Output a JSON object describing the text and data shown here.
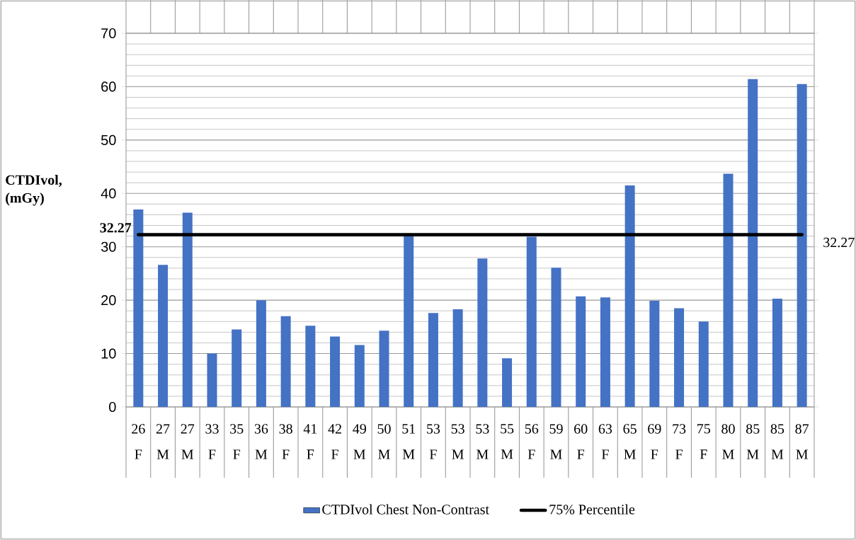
{
  "chart_data": {
    "type": "bar",
    "ylabel": "CTDIvol, (mGy)",
    "categories": [
      "26 F",
      "27 M",
      "27 M",
      "33 F",
      "35 F",
      "36 M",
      "38 F",
      "41 F",
      "42 F",
      "49 M",
      "50 M",
      "51 M",
      "53 F",
      "53 M",
      "53 M",
      "55 M",
      "56 F",
      "59 M",
      "60 F",
      "63 F",
      "65 M",
      "69 F",
      "73 F",
      "75 F",
      "80 M",
      "85 M",
      "85 M",
      "87 M"
    ],
    "series": [
      {
        "name": "CTDIvol Chest Non-Contrast",
        "color": "#4472c4",
        "values": [
          37.0,
          26.6,
          36.4,
          10.0,
          14.5,
          20.0,
          17.0,
          15.2,
          13.2,
          11.6,
          14.3,
          32.0,
          17.6,
          18.3,
          27.8,
          9.1,
          31.9,
          26.1,
          20.7,
          20.5,
          41.5,
          19.9,
          18.5,
          16.0,
          43.7,
          61.4,
          20.3,
          60.5
        ]
      }
    ],
    "ylim": [
      0,
      70
    ],
    "yticks": [
      0,
      10,
      20,
      30,
      40,
      50,
      60,
      70
    ],
    "grid": "y",
    "legend": "bottom",
    "ref_lines": [
      {
        "axis": "y",
        "value": 32.27,
        "label": "75% Percentile",
        "color": "#000000"
      }
    ],
    "annotations": [
      {
        "text": "32.27",
        "x": "26 F",
        "y": 32.27
      },
      {
        "text": "32.27",
        "x": "87 M",
        "y": 32.27
      }
    ]
  }
}
